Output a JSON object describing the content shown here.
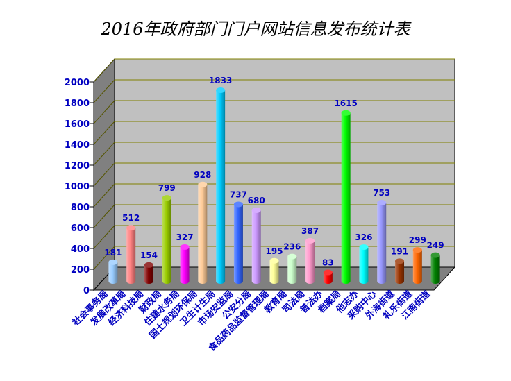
{
  "chart_data": {
    "type": "bar",
    "title": "2016年政府部门门户网站信息发布统计表",
    "categories": [
      "社会事务局",
      "发展改革局",
      "经济科技局",
      "财政局",
      "住建水务局",
      "国土规划环保局",
      "卫生计生局",
      "市场安监局",
      "公安分局",
      "食品药品监督管理局",
      "教育局",
      "司法局",
      "普法办",
      "档案局",
      "他志办",
      "采购中心",
      "外海街道",
      "礼乐街道",
      "江南街道"
    ],
    "values": [
      181,
      512,
      154,
      799,
      327,
      928,
      1833,
      737,
      680,
      195,
      236,
      387,
      83,
      1615,
      326,
      753,
      191,
      299,
      249
    ],
    "colors": [
      "#99ccff",
      "#ff8080",
      "#800000",
      "#99cc00",
      "#ff00ff",
      "#ffcc99",
      "#00ccff",
      "#3366ff",
      "#cc99ff",
      "#ffff99",
      "#ccffcc",
      "#ff99cc",
      "#ff0000",
      "#00ff00",
      "#00ffff",
      "#9999ff",
      "#993300",
      "#ff6600",
      "#008000"
    ],
    "ylim": [
      0,
      2000
    ],
    "yticks": [
      0,
      200,
      400,
      600,
      800,
      1000,
      1200,
      1400,
      1600,
      1800,
      2000
    ],
    "grid": true,
    "legend": "none"
  }
}
